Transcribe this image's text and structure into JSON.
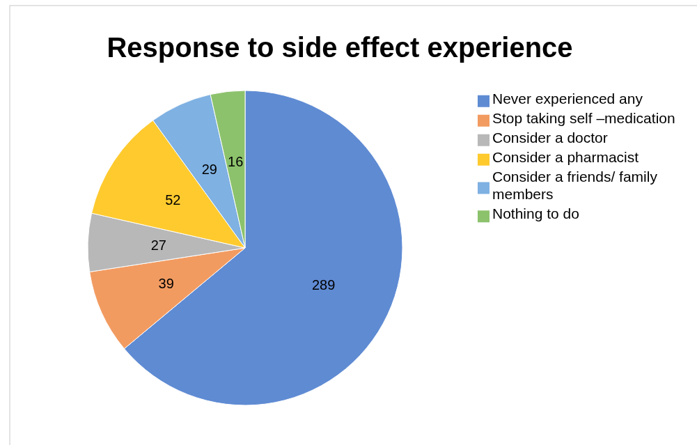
{
  "chart_data": {
    "type": "pie",
    "title": "Response to side effect experience",
    "categories": [
      "Never experienced any",
      "Stop taking self –medication",
      "Consider a doctor",
      "Consider a pharmacist",
      "Consider a friends/ family members",
      "Nothing to do"
    ],
    "values": [
      289,
      39,
      27,
      52,
      29,
      16
    ],
    "colors": [
      "#5f8bd3",
      "#f29b61",
      "#b8b8b8",
      "#ffca2e",
      "#7fb1e2",
      "#8cc26c"
    ],
    "data_labels": true,
    "legend": "right"
  }
}
